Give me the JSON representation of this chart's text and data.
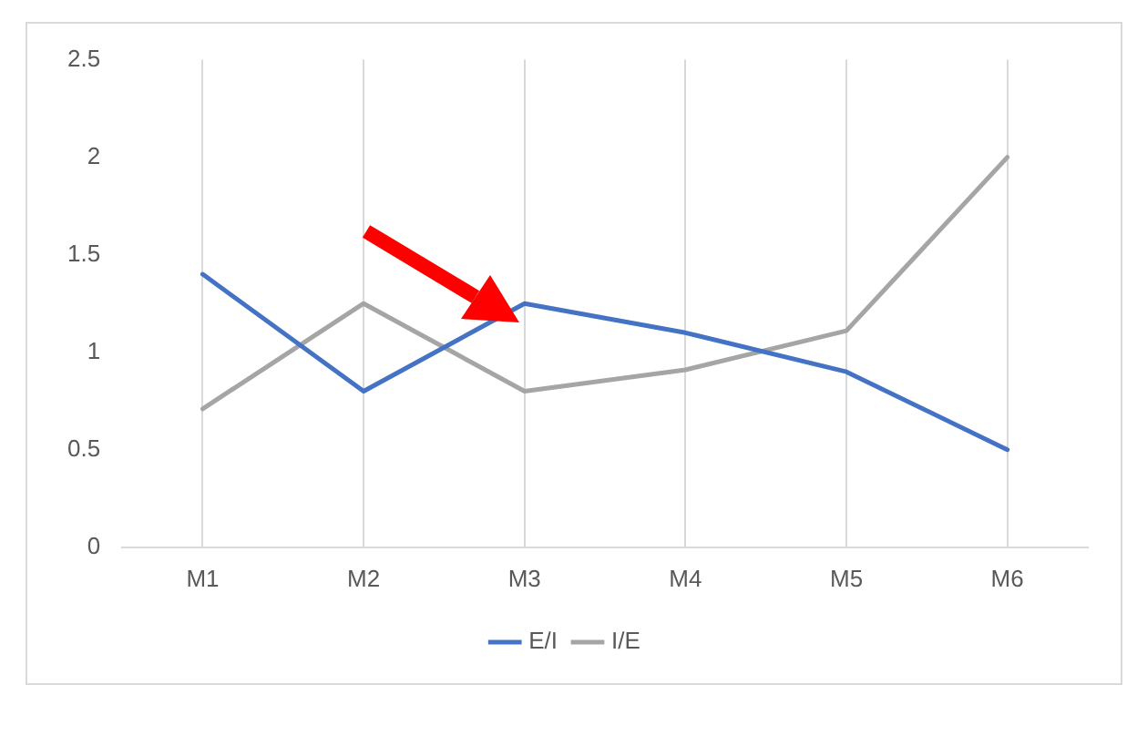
{
  "chart_data": {
    "type": "line",
    "categories": [
      "M1",
      "M2",
      "M3",
      "M4",
      "M5",
      "M6"
    ],
    "series": [
      {
        "name": "E/I",
        "color": "#4472c4",
        "values": [
          1.4,
          0.8,
          1.25,
          1.1,
          0.9,
          0.5
        ]
      },
      {
        "name": "I/E",
        "color": "#a5a5a5",
        "values": [
          0.71,
          1.25,
          0.8,
          0.91,
          1.11,
          2.0
        ]
      }
    ],
    "ylim": [
      0,
      2.5
    ],
    "yticks": [
      0,
      0.5,
      1,
      1.5,
      2,
      2.5
    ],
    "grid": "x",
    "legend": "bottom",
    "marker": "none",
    "line_style": "solid"
  }
}
